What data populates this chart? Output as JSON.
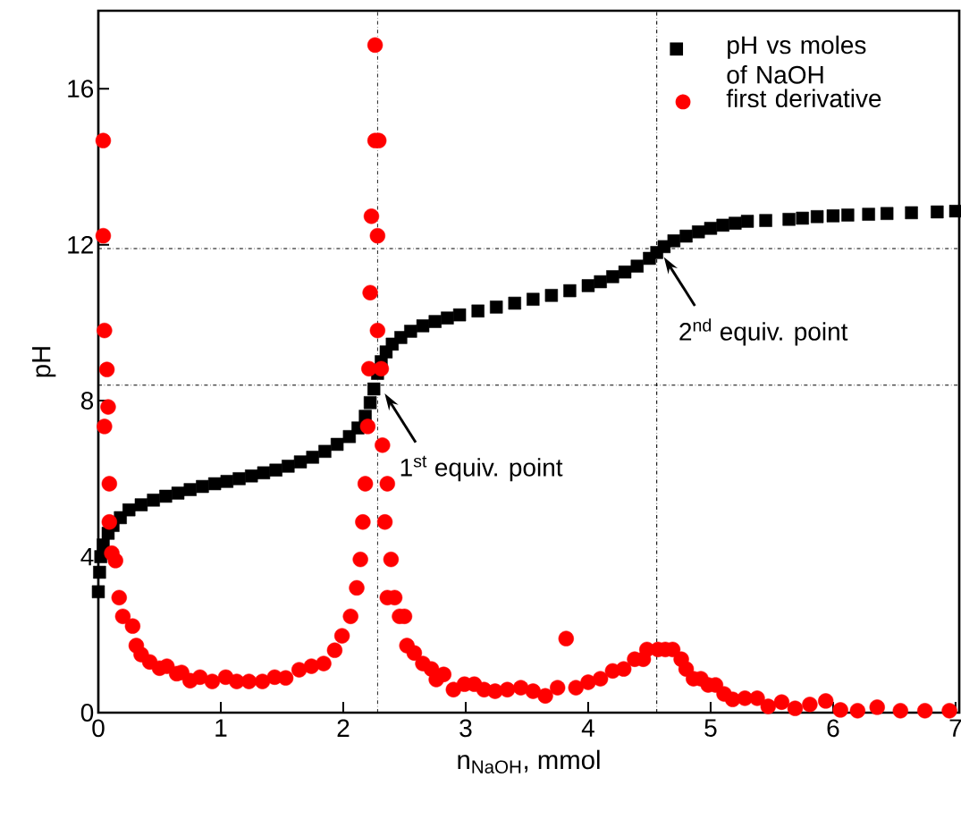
{
  "chart_data": {
    "type": "scatter",
    "xlabel": "n$_{NaOH}$, mmol",
    "ylabel": "pH",
    "xlim": [
      0,
      7.03
    ],
    "ylim": [
      0,
      18
    ],
    "xticks": [
      0,
      1,
      2,
      3,
      4,
      5,
      6,
      7
    ],
    "yticks": [
      0,
      4,
      8,
      12,
      16
    ],
    "grid": false,
    "legend": "top right",
    "series": [
      {
        "name": "pH vs moles of NaOH",
        "color": "#000000",
        "marker": "square",
        "x": [
          0,
          0.01,
          0.02,
          0.04,
          0.08,
          0.12,
          0.18,
          0.25,
          0.35,
          0.45,
          0.55,
          0.65,
          0.75,
          0.85,
          0.95,
          1.05,
          1.15,
          1.25,
          1.35,
          1.45,
          1.55,
          1.65,
          1.75,
          1.85,
          1.95,
          2.05,
          2.12,
          2.18,
          2.22,
          2.25,
          2.28,
          2.31,
          2.35,
          2.4,
          2.47,
          2.55,
          2.65,
          2.75,
          2.85,
          2.95,
          3.1,
          3.25,
          3.4,
          3.55,
          3.7,
          3.85,
          4.0,
          4.1,
          4.2,
          4.3,
          4.4,
          4.5,
          4.56,
          4.62,
          4.7,
          4.8,
          4.9,
          5.0,
          5.1,
          5.2,
          5.3,
          5.45,
          5.64,
          5.75,
          5.87,
          6.0,
          6.12,
          6.29,
          6.44,
          6.64,
          6.85,
          7.0
        ],
        "values": [
          3.1,
          3.6,
          4.0,
          4.3,
          4.6,
          4.8,
          5.0,
          5.2,
          5.33,
          5.45,
          5.55,
          5.63,
          5.72,
          5.8,
          5.87,
          5.93,
          6.0,
          6.07,
          6.15,
          6.22,
          6.32,
          6.43,
          6.55,
          6.7,
          6.88,
          7.08,
          7.3,
          7.6,
          7.95,
          8.3,
          8.7,
          9.0,
          9.25,
          9.45,
          9.62,
          9.78,
          9.92,
          10.03,
          10.12,
          10.2,
          10.3,
          10.4,
          10.5,
          10.6,
          10.7,
          10.82,
          10.95,
          11.05,
          11.18,
          11.3,
          11.45,
          11.65,
          11.8,
          11.95,
          12.1,
          12.22,
          12.33,
          12.42,
          12.5,
          12.55,
          12.6,
          12.62,
          12.65,
          12.68,
          12.72,
          12.74,
          12.76,
          12.78,
          12.8,
          12.82,
          12.84,
          12.86
        ]
      },
      {
        "name": "first derivative",
        "color": "#ff0000",
        "marker": "circle",
        "x": [
          0.04,
          0.04,
          0.05,
          0.07,
          0.08,
          0.05,
          0.09,
          0.09,
          0.11,
          0.14,
          0.17,
          0.2,
          0.28,
          0.31,
          0.35,
          0.42,
          0.5,
          0.56,
          0.64,
          0.68,
          0.75,
          0.83,
          0.93,
          1.04,
          1.13,
          1.23,
          1.34,
          1.44,
          1.53,
          1.64,
          1.74,
          1.84,
          1.93,
          1.99,
          2.06,
          2.11,
          2.14,
          2.16,
          2.18,
          2.2,
          2.21,
          2.22,
          2.23,
          2.26,
          2.26,
          2.29,
          2.28,
          2.28,
          2.31,
          2.32,
          2.36,
          2.34,
          2.39,
          2.36,
          2.42,
          2.46,
          2.5,
          2.52,
          2.58,
          2.65,
          2.72,
          2.76,
          2.82,
          2.9,
          2.99,
          3.07,
          3.15,
          3.24,
          3.34,
          3.45,
          3.55,
          3.65,
          3.75,
          3.82,
          3.9,
          4.0,
          4.1,
          4.2,
          4.29,
          4.38,
          4.45,
          4.48,
          4.57,
          4.63,
          4.69,
          4.76,
          4.8,
          4.86,
          4.92,
          4.98,
          5.04,
          5.11,
          5.18,
          5.28,
          5.38,
          5.47,
          5.58,
          5.69,
          5.81,
          5.94,
          6.06,
          6.2,
          6.36,
          6.55,
          6.75,
          6.95
        ],
        "values": [
          14.67,
          12.23,
          9.8,
          8.8,
          7.84,
          7.34,
          5.87,
          4.89,
          4.09,
          3.9,
          2.95,
          2.47,
          2.22,
          1.72,
          1.49,
          1.3,
          1.14,
          1.19,
          1.0,
          1.03,
          0.82,
          0.91,
          0.8,
          0.91,
          0.8,
          0.8,
          0.8,
          0.91,
          0.89,
          1.1,
          1.19,
          1.26,
          1.6,
          1.97,
          2.47,
          3.2,
          3.93,
          4.89,
          5.87,
          7.34,
          8.82,
          10.77,
          12.73,
          17.12,
          14.67,
          14.67,
          12.23,
          9.8,
          8.82,
          6.86,
          5.87,
          4.89,
          3.93,
          2.95,
          2.95,
          2.47,
          2.47,
          1.72,
          1.53,
          1.26,
          1.12,
          0.85,
          0.98,
          0.59,
          0.73,
          0.73,
          0.59,
          0.55,
          0.59,
          0.64,
          0.55,
          0.43,
          0.64,
          1.9,
          0.64,
          0.78,
          0.87,
          1.07,
          1.12,
          1.37,
          1.37,
          1.62,
          1.62,
          1.62,
          1.62,
          1.37,
          1.12,
          0.87,
          0.87,
          0.71,
          0.71,
          0.48,
          0.34,
          0.37,
          0.37,
          0.16,
          0.27,
          0.11,
          0.21,
          0.3,
          0.07,
          0.05,
          0.14,
          0.05,
          0.05,
          0.05
        ]
      }
    ],
    "ref_lines": [
      {
        "axis": "x",
        "value": 2.28,
        "color": "#000000"
      },
      {
        "axis": "x",
        "value": 4.56,
        "color": "#000000"
      },
      {
        "axis": "y",
        "value": 8.4,
        "color": "#000000"
      },
      {
        "axis": "y",
        "value": 11.9,
        "color": "#000000"
      }
    ],
    "annotations": [
      {
        "text": "1$^{st}$ equiv. point",
        "x": 2.28,
        "y": 8.4
      },
      {
        "text": "2$^{nd}$ equiv. point",
        "x": 4.56,
        "y": 11.9
      }
    ]
  }
}
